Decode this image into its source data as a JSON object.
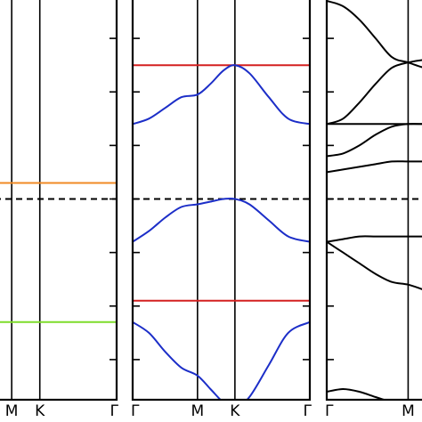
{
  "chart_data": [
    {
      "type": "line",
      "title": "",
      "xlabel": "",
      "ylabel": "",
      "k_points": [
        {
          "label": "M",
          "x": 0.5
        },
        {
          "label": "K",
          "x": 0.866
        },
        {
          "label": "Γ",
          "x": 1.866
        }
      ],
      "xlim": [
        0,
        1.866
      ],
      "ylim": [
        -0.75,
        0.75
      ],
      "fermi_level": 0,
      "y_ticks": [
        -0.6,
        -0.4,
        -0.2,
        0.0,
        0.2,
        0.4,
        0.6
      ],
      "grid": false,
      "series": [
        {
          "color": "#f08a24",
          "x": [
            0,
            1.866
          ],
          "values": [
            0.06,
            0.06
          ]
        },
        {
          "color": "#7ddc2a",
          "x": [
            0,
            1.866
          ],
          "values": [
            -0.46,
            -0.46
          ]
        }
      ]
    },
    {
      "type": "line",
      "title": "",
      "xlabel": "",
      "ylabel": "",
      "k_points": [
        {
          "label": "Γ",
          "x": 0
        },
        {
          "label": "M",
          "x": 1.0
        },
        {
          "label": "K",
          "x": 1.577
        },
        {
          "label": "Γ",
          "x": 2.732
        }
      ],
      "xlim": [
        0,
        2.732
      ],
      "ylim": [
        -0.75,
        0.75
      ],
      "fermi_level": 0,
      "y_ticks": [
        -0.6,
        -0.4,
        -0.2,
        0.0,
        0.2,
        0.4,
        0.6
      ],
      "grid": false,
      "series": [
        {
          "color": "#d42020",
          "x": [
            0,
            2.732
          ],
          "values": [
            0.5,
            0.5
          ]
        },
        {
          "color": "#1c2ec8",
          "x": [
            0,
            0.25,
            0.5,
            0.75,
            1.0,
            1.2,
            1.4,
            1.577,
            1.8,
            2.1,
            2.4,
            2.732
          ],
          "values": [
            0.28,
            0.3,
            0.34,
            0.38,
            0.39,
            0.43,
            0.48,
            0.5,
            0.47,
            0.38,
            0.3,
            0.28
          ]
        },
        {
          "color": "#1c2ec8",
          "x": [
            0,
            0.25,
            0.5,
            0.75,
            1.0,
            1.2,
            1.4,
            1.577,
            1.8,
            2.1,
            2.4,
            2.732
          ],
          "values": [
            -0.16,
            -0.12,
            -0.07,
            -0.03,
            -0.02,
            -0.01,
            0.0,
            0.0,
            -0.02,
            -0.08,
            -0.14,
            -0.16
          ]
        },
        {
          "color": "#d42020",
          "x": [
            0,
            2.732
          ],
          "values": [
            -0.38,
            -0.38
          ]
        },
        {
          "color": "#1c2ec8",
          "x": [
            0,
            0.25,
            0.5,
            0.75,
            1.0,
            1.2,
            1.4,
            1.577,
            1.8,
            2.1,
            2.4,
            2.732
          ],
          "values": [
            -0.46,
            -0.5,
            -0.57,
            -0.63,
            -0.66,
            -0.71,
            -0.76,
            -0.78,
            -0.74,
            -0.62,
            -0.5,
            -0.46
          ]
        }
      ]
    },
    {
      "type": "line",
      "title": "",
      "xlabel": "",
      "ylabel": "",
      "k_points": [
        {
          "label": "Γ",
          "x": 0
        },
        {
          "label": "M",
          "x": 1.0
        }
      ],
      "xlim": [
        0,
        1.4
      ],
      "ylim": [
        -0.75,
        0.75
      ],
      "fermi_level": 0,
      "y_ticks": [
        -0.6,
        -0.4,
        -0.2,
        0.0,
        0.2,
        0.4,
        0.6
      ],
      "grid": false,
      "series": [
        {
          "color": "#000000",
          "x": [
            0,
            0.2,
            0.4,
            0.6,
            0.8,
            1.0,
            1.2,
            1.4
          ],
          "values": [
            0.74,
            0.72,
            0.67,
            0.6,
            0.53,
            0.51,
            0.49,
            0.48
          ]
        },
        {
          "color": "#000000",
          "x": [
            0,
            0.2,
            0.4,
            0.6,
            0.8,
            1.0,
            1.2,
            1.4
          ],
          "values": [
            0.28,
            0.3,
            0.36,
            0.43,
            0.49,
            0.51,
            0.52,
            0.52
          ]
        },
        {
          "color": "#000000",
          "x": [
            0,
            0.2,
            0.4,
            0.6,
            0.8,
            1.0,
            1.2,
            1.4
          ],
          "values": [
            0.28,
            0.28,
            0.28,
            0.28,
            0.28,
            0.28,
            0.28,
            0.28
          ]
        },
        {
          "color": "#000000",
          "x": [
            0,
            0.2,
            0.4,
            0.6,
            0.8,
            1.0,
            1.2,
            1.4
          ],
          "values": [
            0.16,
            0.17,
            0.2,
            0.24,
            0.27,
            0.28,
            0.28,
            0.28
          ]
        },
        {
          "color": "#000000",
          "x": [
            0,
            0.2,
            0.4,
            0.6,
            0.8,
            1.0,
            1.2,
            1.4
          ],
          "values": [
            0.1,
            0.11,
            0.12,
            0.13,
            0.14,
            0.14,
            0.14,
            0.14
          ]
        },
        {
          "color": "#000000",
          "x": [
            0,
            0.2,
            0.4,
            0.6,
            0.8,
            1.0,
            1.2,
            1.4
          ],
          "values": [
            -0.16,
            -0.15,
            -0.14,
            -0.14,
            -0.14,
            -0.14,
            -0.14,
            -0.14
          ]
        },
        {
          "color": "#000000",
          "x": [
            0,
            0.2,
            0.4,
            0.6,
            0.8,
            1.0,
            1.2,
            1.4
          ],
          "values": [
            -0.16,
            -0.2,
            -0.24,
            -0.28,
            -0.31,
            -0.32,
            -0.34,
            -0.36
          ]
        },
        {
          "color": "#000000",
          "x": [
            0,
            0.2,
            0.4,
            0.6,
            0.8,
            1.0,
            1.2,
            1.4
          ],
          "values": [
            -0.72,
            -0.71,
            -0.72,
            -0.74,
            -0.76,
            -0.78,
            -0.8,
            -0.82
          ]
        },
        {
          "color": "#000000",
          "x": [
            0,
            0.2,
            0.4,
            0.6,
            0.8,
            1.0,
            1.2,
            1.4
          ],
          "values": [
            -0.89,
            -0.85,
            -0.79,
            -0.76,
            -0.77,
            -0.79,
            -0.8,
            -0.81
          ]
        }
      ]
    }
  ]
}
